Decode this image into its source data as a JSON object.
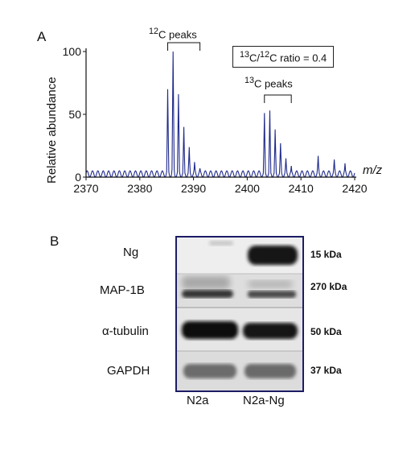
{
  "panel_a": {
    "letter": "A",
    "ratio_parts": [
      "13",
      "C/",
      "12",
      "C ratio = 0.4"
    ],
    "c12_parts": [
      "12",
      "C peaks"
    ],
    "c13_parts": [
      "13",
      "C peaks"
    ],
    "ylabel": "Relative abundance",
    "xlabel": "m/z",
    "series_color": "#1f2a8a",
    "chart_data": {
      "type": "line",
      "title": "",
      "xlabel": "m/z",
      "ylabel": "Relative abundance",
      "xlim": [
        2370,
        2420
      ],
      "ylim": [
        0,
        100
      ],
      "xticks": [
        2370,
        2380,
        2390,
        2400,
        2410,
        2420
      ],
      "yticks": [
        0,
        50,
        100
      ],
      "peaks": [
        {
          "x": 2385.2,
          "y": 70
        },
        {
          "x": 2386.2,
          "y": 100
        },
        {
          "x": 2387.2,
          "y": 66
        },
        {
          "x": 2388.2,
          "y": 40
        },
        {
          "x": 2389.2,
          "y": 24
        },
        {
          "x": 2390.2,
          "y": 12
        },
        {
          "x": 2391.2,
          "y": 7
        },
        {
          "x": 2403.2,
          "y": 51
        },
        {
          "x": 2404.2,
          "y": 53
        },
        {
          "x": 2405.2,
          "y": 38
        },
        {
          "x": 2406.2,
          "y": 27
        },
        {
          "x": 2407.2,
          "y": 15
        },
        {
          "x": 2408.2,
          "y": 9
        },
        {
          "x": 2413.2,
          "y": 17
        },
        {
          "x": 2416.2,
          "y": 14
        },
        {
          "x": 2418.2,
          "y": 11
        }
      ],
      "baseline": 5
    }
  },
  "panel_b": {
    "letter": "B",
    "rows": [
      {
        "label": "Ng",
        "kda": "15 kDa"
      },
      {
        "label": "MAP-1B",
        "kda": "270 kDa"
      },
      {
        "label": "α-tubulin",
        "kda": "50 kDa"
      },
      {
        "label": "GAPDH",
        "kda": "37 kDa"
      }
    ],
    "lanes": [
      "N2a",
      "N2a-Ng"
    ]
  }
}
